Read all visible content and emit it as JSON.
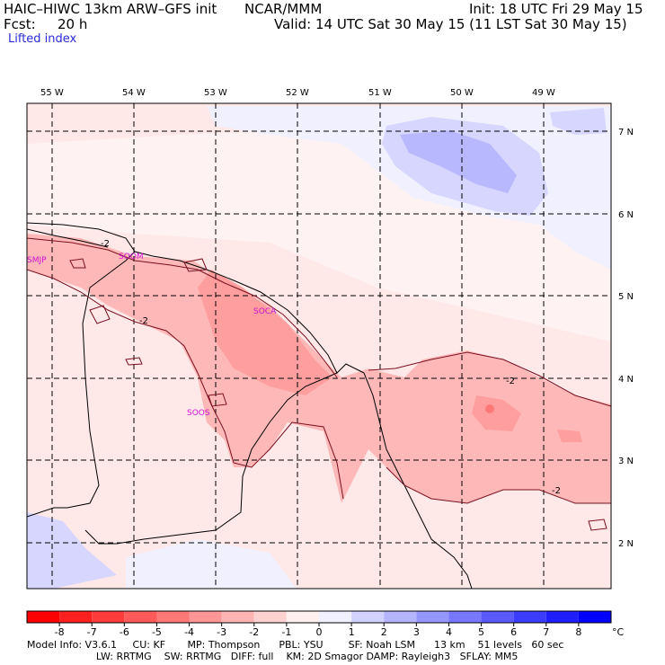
{
  "header": {
    "model_title": "HAIC–HIWC 13km ARW–GFS init",
    "org": "NCAR/MMM",
    "init": "Init: 18 UTC Fri 29 May 15",
    "fcst_label": "Fcst:",
    "fcst_value": "20 h",
    "valid": "Valid: 14 UTC Sat 30 May 15 (11 LST Sat 30 May 15)",
    "field": "Lifted index"
  },
  "map": {
    "lon_labels": [
      "55 W",
      "54 W",
      "53 W",
      "52 W",
      "51 W",
      "50 W",
      "49 W"
    ],
    "lat_labels": [
      "7 N",
      "6 N",
      "5 N",
      "4 N",
      "3 N",
      "2 N"
    ],
    "stations": [
      "SMJP",
      "SOCA",
      "SOOM",
      "SOOS"
    ],
    "contour_labels": [
      "-2",
      "-2",
      "-2",
      "-2"
    ]
  },
  "colorbar": {
    "ticks": [
      "-8",
      "-7",
      "-6",
      "-5",
      "-4",
      "-3",
      "-2",
      "-1",
      "0",
      "1",
      "2",
      "3",
      "4",
      "5",
      "6",
      "7",
      "8"
    ],
    "unit": "°C",
    "colors": [
      "#ff0000",
      "#ff2020",
      "#ff3c3c",
      "#ff5a5a",
      "#ff7878",
      "#ff9696",
      "#ffb4b4",
      "#ffd2d2",
      "#fff0f0",
      "#f0f0ff",
      "#d2d2ff",
      "#b4b4ff",
      "#9696ff",
      "#7878ff",
      "#5a5aff",
      "#3c3cff",
      "#1e1eff",
      "#0000ff"
    ]
  },
  "footer": {
    "line1": "Model Info: V3.6.1     CU: KF       MP: Thompson      PBL: YSU        SF: Noah LSM      13 km    51 levels   60 sec",
    "line2": "                      LW: RRTMG    SW: RRTMG   DIFF: full    KM: 2D Smagor DAMP: Rayleigh3   SFLAY: MM5"
  }
}
